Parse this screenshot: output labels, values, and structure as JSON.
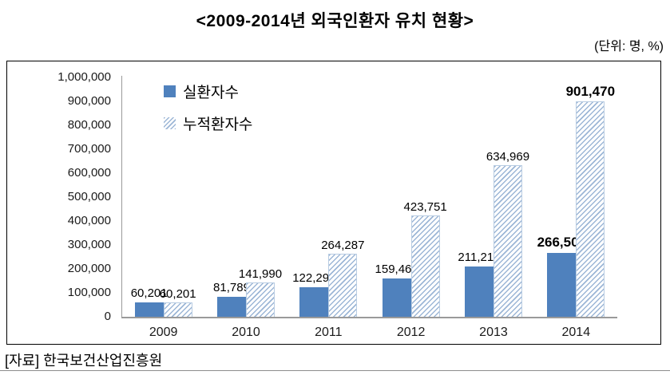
{
  "title": "<2009-2014년 외국인환자 유치 현황>",
  "unit_note": "(단위: 명, %)",
  "source": "[자료] 한국보건산업진흥원",
  "colors": {
    "bar_solid": "#4f81bd",
    "hatch_line": "#9cb6d6",
    "hatch_border": "#b8cce2",
    "axis_line": "#9a9a9a",
    "frame_border": "#000000"
  },
  "chart_data": {
    "type": "bar",
    "title": "<2009-2014년 외국인환자 유치 현황>",
    "unit": "명, %",
    "categories": [
      "2009",
      "2010",
      "2011",
      "2012",
      "2013",
      "2014"
    ],
    "series": [
      {
        "name": "실환자수",
        "style": "solid",
        "values": [
          60201,
          81789,
          122297,
          159464,
          211218,
          266501
        ],
        "labels": [
          "60,201",
          "81,789",
          "122,297",
          "159,464",
          "211,218",
          "266,501"
        ]
      },
      {
        "name": "누적환자수",
        "style": "hatched",
        "values": [
          60201,
          141990,
          264287,
          423751,
          634969,
          901470
        ],
        "labels": [
          "60,201",
          "141,990",
          "264,287",
          "423,751",
          "634,969",
          "901,470"
        ]
      }
    ],
    "ylim": [
      0,
      1000000
    ],
    "ytick_step": 100000,
    "yticks": [
      "1,000,000",
      "900,000",
      "800,000",
      "700,000",
      "600,000",
      "500,000",
      "400,000",
      "300,000",
      "200,000",
      "100,000",
      "0"
    ],
    "grid": false,
    "legend_position": "inside-top-left",
    "emphasized_category": "2014"
  }
}
